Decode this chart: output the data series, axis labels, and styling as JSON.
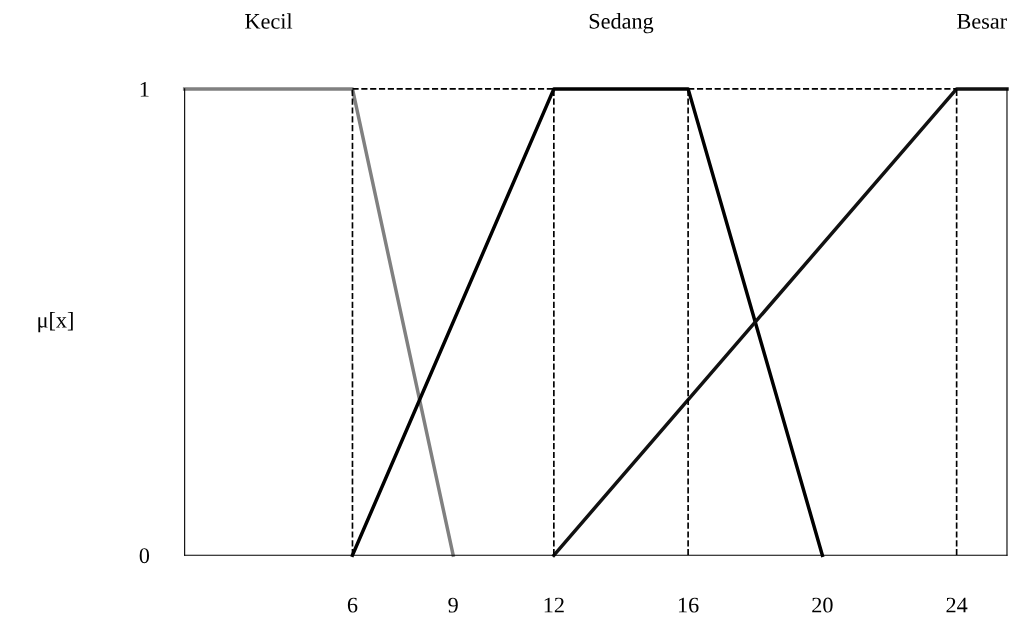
{
  "chart_data": {
    "type": "line",
    "ylabel": "μ[x]",
    "series": [
      {
        "name": "Kecil",
        "color": "#808080",
        "x": [
          1,
          6,
          9
        ],
        "values": [
          1,
          1,
          0
        ]
      },
      {
        "name": "Sedang",
        "color": "#000000",
        "x": [
          6,
          12,
          16,
          20
        ],
        "values": [
          0,
          1,
          1,
          0
        ]
      },
      {
        "name": "Besar",
        "color": "#111111",
        "x": [
          12,
          24,
          25.5
        ],
        "values": [
          0,
          1,
          1
        ]
      },
      {
        "color": "#000000",
        "x": [
          6,
          24
        ],
        "values": [
          1,
          1
        ],
        "line_style": "dashed"
      }
    ],
    "xlim": [
      1,
      25.5
    ],
    "ylim": [
      0,
      1
    ],
    "xticks": [
      6,
      9,
      12,
      16,
      20,
      24
    ],
    "yticks": [
      0,
      1
    ],
    "ref_lines": [
      {
        "axis": "x",
        "value": 6,
        "line_style": "dashed",
        "color": "#000000"
      },
      {
        "axis": "x",
        "value": 12,
        "line_style": "dashed",
        "color": "#000000"
      },
      {
        "axis": "x",
        "value": 16,
        "line_style": "dashed",
        "color": "#000000"
      },
      {
        "axis": "x",
        "value": 24,
        "line_style": "dashed",
        "color": "#000000"
      }
    ],
    "grid": false,
    "legend": false,
    "marker": "none",
    "line_style": "solid"
  }
}
